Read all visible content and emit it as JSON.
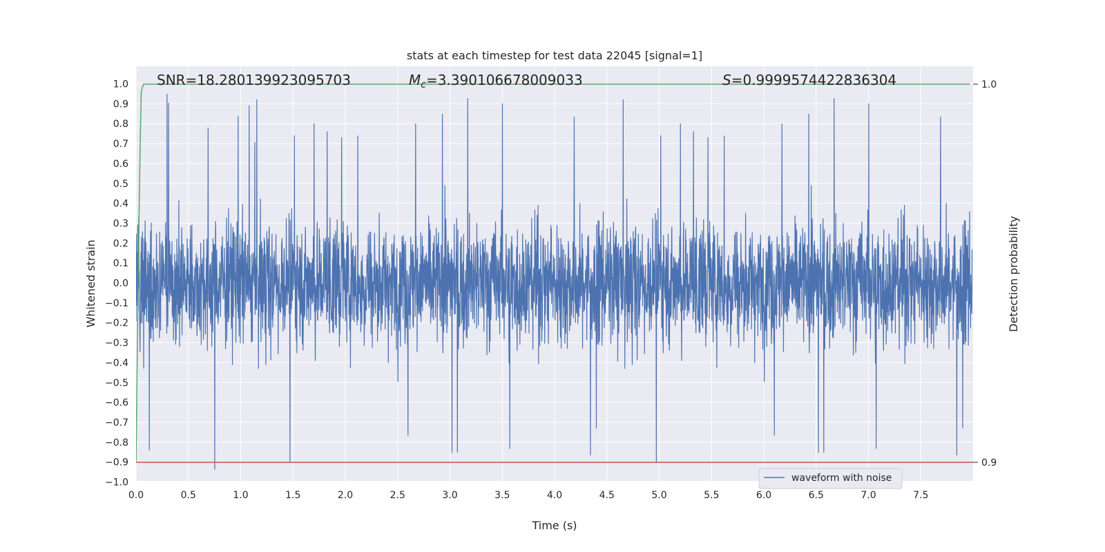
{
  "chart_data": {
    "type": "line",
    "title": "stats at each timestep for test data 22045 [signal=1]",
    "xlabel": "Time (s)",
    "ylabel": "Whitened strain",
    "y2label": "Detection probability",
    "xlim": [
      0.0,
      8.0
    ],
    "ylim": [
      -1.0,
      1.0
    ],
    "y2lim": [
      0.9,
      1.0
    ],
    "grid": true,
    "legend_position": "lower-right",
    "x_ticks": [
      "0.0",
      "0.5",
      "1.0",
      "1.5",
      "2.0",
      "2.5",
      "3.0",
      "3.5",
      "4.0",
      "4.5",
      "5.0",
      "5.5",
      "6.0",
      "6.5",
      "7.0",
      "7.5"
    ],
    "y_ticks": [
      "1.0",
      "0.9",
      "0.8",
      "0.7",
      "0.6",
      "0.5",
      "0.4",
      "0.3",
      "0.2",
      "0.1",
      "0.0",
      "−0.1",
      "−0.2",
      "−0.3",
      "−0.4",
      "−0.5",
      "−0.6",
      "−0.7",
      "−0.8",
      "−0.9",
      "−1.0"
    ],
    "y2_ticks": [
      "1.0",
      "0.9"
    ],
    "annotations": {
      "snr": "SNR=18.280139923095703",
      "mc_symbol": "M",
      "mc_sub": "c",
      "mc_value": "=3.390106678009033",
      "s_symbol": "S",
      "s_value": "=0.9999574422836304"
    },
    "series": [
      {
        "name": "waveform with noise",
        "color": "#4c72b0",
        "kind": "noise",
        "x_range": [
          0.0,
          7.99
        ],
        "typical_amplitude": 0.4,
        "max_abs": 0.97
      },
      {
        "color": "#55a868",
        "kind": "probability",
        "x": [
          0.0,
          0.02,
          0.04,
          0.05,
          0.07,
          7.97
        ],
        "y": [
          0.9,
          0.95,
          0.985,
          0.998,
          1.0,
          1.0
        ]
      },
      {
        "color": "#c44e52",
        "kind": "threshold",
        "y": 0.9
      }
    ]
  }
}
